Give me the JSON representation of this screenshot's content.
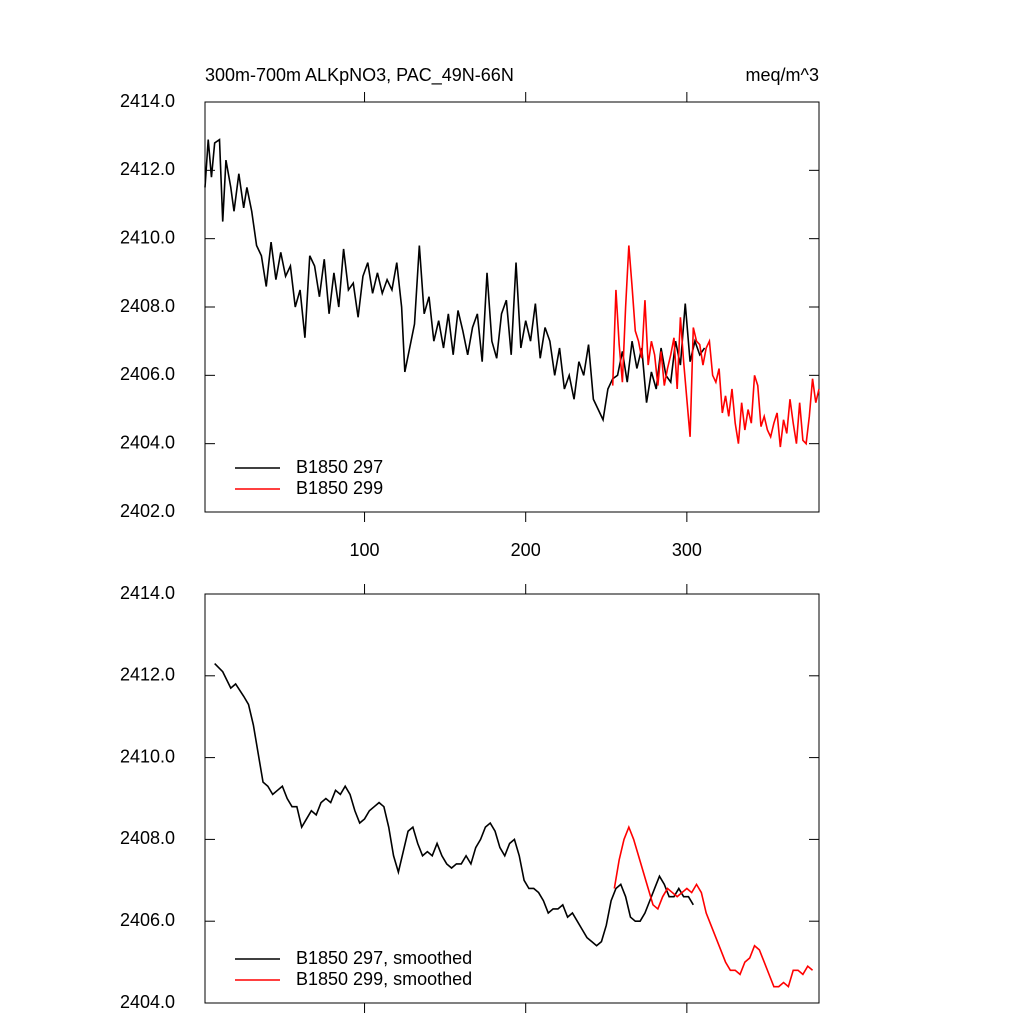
{
  "chart_data": [
    {
      "type": "line",
      "title": "300m-700m ALKpNO3, PAC_49N-66N",
      "units": "meq/m^3",
      "xlim": [
        1,
        382
      ],
      "ylim": [
        2402,
        2414
      ],
      "xticks": [
        100,
        200,
        300
      ],
      "xtick_labels": true,
      "yticks": [
        {
          "value": 2402,
          "label": "2402.0"
        },
        {
          "value": 2404,
          "label": "2404.0"
        },
        {
          "value": 2406,
          "label": "2406.0"
        },
        {
          "value": 2408,
          "label": "2408.0"
        },
        {
          "value": 2410,
          "label": "2410.0"
        },
        {
          "value": 2412,
          "label": "2412.0"
        },
        {
          "value": 2414,
          "label": "2414.0"
        }
      ],
      "legend": "lower left",
      "series": [
        {
          "name": "B1850 297",
          "color": "#000000",
          "x": [
            1,
            3,
            5,
            7,
            10,
            12,
            14,
            17,
            19,
            22,
            25,
            27,
            30,
            33,
            36,
            39,
            42,
            45,
            48,
            51,
            54,
            57,
            60,
            63,
            66,
            69,
            72,
            75,
            78,
            81,
            84,
            87,
            90,
            93,
            96,
            99,
            102,
            105,
            108,
            111,
            114,
            117,
            120,
            123,
            125,
            128,
            131,
            134,
            137,
            140,
            143,
            146,
            149,
            152,
            155,
            158,
            161,
            164,
            167,
            170,
            173,
            176,
            179,
            182,
            185,
            188,
            191,
            194,
            197,
            200,
            203,
            206,
            209,
            212,
            215,
            218,
            221,
            224,
            227,
            230,
            233,
            236,
            239,
            242,
            245,
            248,
            251,
            254,
            257,
            260,
            263,
            266,
            269,
            272,
            275,
            278,
            281,
            284,
            287,
            290,
            293,
            296,
            299,
            302,
            305,
            308,
            311
          ],
          "values": [
            2411.5,
            2412.9,
            2411.8,
            2412.8,
            2412.9,
            2410.5,
            2412.3,
            2411.5,
            2410.8,
            2411.9,
            2410.9,
            2411.5,
            2410.8,
            2409.8,
            2409.5,
            2408.6,
            2409.9,
            2408.8,
            2409.6,
            2408.9,
            2409.2,
            2408.0,
            2408.5,
            2407.1,
            2409.5,
            2409.2,
            2408.3,
            2409.4,
            2407.8,
            2409.0,
            2408.0,
            2409.7,
            2408.5,
            2408.7,
            2407.7,
            2408.9,
            2409.3,
            2408.4,
            2409.0,
            2408.4,
            2408.8,
            2408.5,
            2409.3,
            2408.0,
            2406.1,
            2406.8,
            2407.5,
            2409.8,
            2407.8,
            2408.3,
            2407.0,
            2407.6,
            2406.8,
            2407.8,
            2406.6,
            2407.9,
            2407.3,
            2406.6,
            2407.4,
            2407.8,
            2406.4,
            2409.0,
            2407.0,
            2406.5,
            2407.8,
            2408.2,
            2406.6,
            2409.3,
            2406.8,
            2407.6,
            2407.0,
            2408.1,
            2406.5,
            2407.4,
            2407.0,
            2406.0,
            2406.8,
            2405.6,
            2406.0,
            2405.3,
            2406.4,
            2406.0,
            2406.9,
            2405.3,
            2405.0,
            2404.7,
            2405.6,
            2405.9,
            2406.0,
            2406.7,
            2405.8,
            2407.0,
            2406.2,
            2406.8,
            2405.2,
            2406.1,
            2405.6,
            2406.8,
            2406.0,
            2405.8,
            2407.0,
            2406.3,
            2408.1,
            2406.4,
            2407.0,
            2406.6,
            2406.8
          ]
        },
        {
          "name": "B1850 299",
          "color": "#ff0000",
          "x": [
            254,
            256,
            258,
            260,
            262,
            264,
            266,
            268,
            270,
            272,
            274,
            276,
            278,
            280,
            282,
            284,
            286,
            288,
            290,
            292,
            294,
            296,
            298,
            300,
            302,
            304,
            306,
            308,
            310,
            312,
            314,
            316,
            318,
            320,
            322,
            324,
            326,
            328,
            330,
            332,
            334,
            336,
            338,
            340,
            342,
            344,
            346,
            348,
            350,
            352,
            354,
            356,
            358,
            360,
            362,
            364,
            366,
            368,
            370,
            372,
            374,
            376,
            378,
            380,
            382
          ],
          "values": [
            2405.7,
            2408.5,
            2406.9,
            2405.8,
            2408.0,
            2409.8,
            2408.6,
            2407.3,
            2407.0,
            2406.5,
            2408.2,
            2406.3,
            2407.0,
            2406.6,
            2405.7,
            2406.7,
            2405.7,
            2406.2,
            2406.6,
            2407.1,
            2405.6,
            2407.7,
            2406.4,
            2405.3,
            2404.2,
            2407.4,
            2407.0,
            2406.9,
            2406.3,
            2406.8,
            2407.0,
            2406.0,
            2405.8,
            2406.2,
            2404.9,
            2405.4,
            2404.8,
            2405.6,
            2404.6,
            2404.0,
            2405.2,
            2404.4,
            2405.0,
            2404.6,
            2406.0,
            2405.7,
            2404.5,
            2404.8,
            2404.4,
            2404.2,
            2404.6,
            2404.9,
            2403.9,
            2404.7,
            2404.3,
            2405.3,
            2404.6,
            2404.0,
            2405.2,
            2404.1,
            2404.0,
            2404.8,
            2405.9,
            2405.2,
            2405.6
          ]
        }
      ]
    },
    {
      "type": "line",
      "xlim": [
        1,
        382
      ],
      "ylim": [
        2404,
        2414
      ],
      "xticks": [
        100,
        200,
        300
      ],
      "xtick_labels": false,
      "yticks": [
        {
          "value": 2404,
          "label": "2404.0"
        },
        {
          "value": 2406,
          "label": "2406.0"
        },
        {
          "value": 2408,
          "label": "2408.0"
        },
        {
          "value": 2410,
          "label": "2410.0"
        },
        {
          "value": 2412,
          "label": "2412.0"
        },
        {
          "value": 2414,
          "label": "2414.0"
        }
      ],
      "legend": "lower left",
      "series": [
        {
          "name": "B1850 297, smoothed",
          "color": "#000000",
          "x": [
            7,
            12,
            17,
            20,
            25,
            28,
            31,
            34,
            37,
            40,
            43,
            46,
            49,
            52,
            55,
            58,
            61,
            64,
            67,
            70,
            73,
            76,
            79,
            82,
            85,
            88,
            91,
            94,
            97,
            100,
            103,
            106,
            109,
            112,
            115,
            118,
            121,
            124,
            127,
            130,
            133,
            136,
            139,
            142,
            145,
            148,
            151,
            154,
            157,
            160,
            163,
            166,
            169,
            172,
            175,
            178,
            181,
            184,
            187,
            190,
            193,
            196,
            199,
            202,
            205,
            208,
            211,
            214,
            217,
            220,
            223,
            226,
            229,
            232,
            235,
            238,
            241,
            244,
            247,
            250,
            253,
            256,
            259,
            262,
            265,
            268,
            271,
            274,
            277,
            280,
            283,
            286,
            289,
            292,
            295,
            298,
            301,
            304
          ],
          "values": [
            2412.3,
            2412.1,
            2411.7,
            2411.8,
            2411.5,
            2411.3,
            2410.8,
            2410.1,
            2409.4,
            2409.3,
            2409.1,
            2409.2,
            2409.3,
            2409.0,
            2408.8,
            2408.8,
            2408.3,
            2408.5,
            2408.7,
            2408.6,
            2408.9,
            2409.0,
            2408.9,
            2409.2,
            2409.1,
            2409.3,
            2409.1,
            2408.7,
            2408.4,
            2408.5,
            2408.7,
            2408.8,
            2408.9,
            2408.8,
            2408.3,
            2407.6,
            2407.2,
            2407.7,
            2408.2,
            2408.3,
            2407.9,
            2407.6,
            2407.7,
            2407.6,
            2407.9,
            2407.6,
            2407.4,
            2407.3,
            2407.4,
            2407.4,
            2407.6,
            2407.4,
            2407.8,
            2408.0,
            2408.3,
            2408.4,
            2408.2,
            2407.8,
            2407.6,
            2407.9,
            2408.0,
            2407.6,
            2407.0,
            2406.8,
            2406.8,
            2406.7,
            2406.5,
            2406.2,
            2406.3,
            2406.3,
            2406.4,
            2406.1,
            2406.2,
            2406.0,
            2405.8,
            2405.6,
            2405.5,
            2405.4,
            2405.5,
            2405.9,
            2406.5,
            2406.8,
            2406.9,
            2406.6,
            2406.1,
            2406.0,
            2406.0,
            2406.2,
            2406.5,
            2406.8,
            2407.1,
            2406.9,
            2406.6,
            2406.6,
            2406.8,
            2406.6,
            2406.6,
            2406.4
          ]
        },
        {
          "name": "B1850 299, smoothed",
          "color": "#ff0000",
          "x": [
            255,
            258,
            261,
            264,
            267,
            270,
            273,
            276,
            279,
            282,
            285,
            288,
            291,
            294,
            297,
            300,
            303,
            306,
            309,
            312,
            315,
            318,
            321,
            324,
            327,
            330,
            333,
            336,
            339,
            342,
            345,
            348,
            351,
            354,
            357,
            360,
            363,
            366,
            369,
            372,
            375,
            378
          ],
          "values": [
            2406.8,
            2407.5,
            2408.0,
            2408.3,
            2408.0,
            2407.6,
            2407.2,
            2406.8,
            2406.4,
            2406.3,
            2406.6,
            2406.8,
            2406.7,
            2406.6,
            2406.7,
            2406.8,
            2406.7,
            2406.9,
            2406.7,
            2406.2,
            2405.9,
            2405.6,
            2405.3,
            2405.0,
            2404.8,
            2404.8,
            2404.7,
            2405.0,
            2405.1,
            2405.4,
            2405.3,
            2405.0,
            2404.7,
            2404.4,
            2404.4,
            2404.5,
            2404.4,
            2404.8,
            2404.8,
            2404.7,
            2404.9,
            2404.8
          ]
        }
      ]
    }
  ]
}
